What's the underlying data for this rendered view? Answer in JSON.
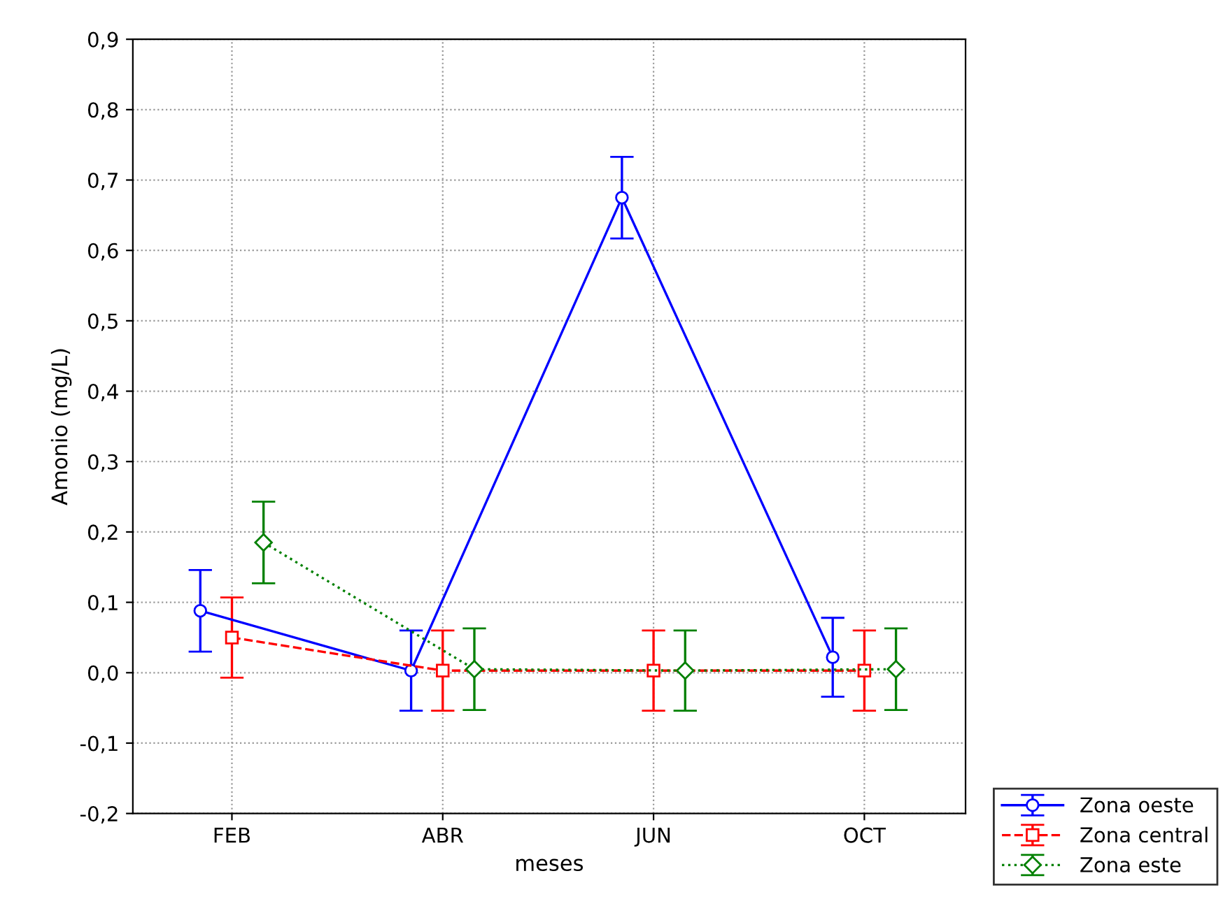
{
  "chart_data": {
    "type": "line",
    "xlabel": "meses",
    "ylabel": "Amonio (mg/L)",
    "categories": [
      "FEB",
      "ABR",
      "JUN",
      "OCT"
    ],
    "series": [
      {
        "name": "Zona oeste",
        "color": "#0000ff",
        "values": [
          0.088,
          0.003,
          0.675,
          0.022
        ],
        "errors": [
          0.058,
          0.057,
          0.058,
          0.056
        ],
        "marker": "circle",
        "line_style": "solid"
      },
      {
        "name": "Zona central",
        "color": "#ff0000",
        "values": [
          0.05,
          0.003,
          0.003,
          0.003
        ],
        "errors": [
          0.057,
          0.057,
          0.057,
          0.057
        ],
        "marker": "square",
        "line_style": "dashed"
      },
      {
        "name": "Zona este",
        "color": "#008000",
        "values": [
          0.185,
          0.005,
          0.003,
          0.005
        ],
        "errors": [
          0.058,
          0.058,
          0.057,
          0.058
        ],
        "marker": "diamond",
        "line_style": "dotted"
      }
    ],
    "ylim": [
      -0.2,
      0.9
    ],
    "yticks": [
      {
        "value": -0.2,
        "label": "-0,2"
      },
      {
        "value": -0.1,
        "label": "-0,1"
      },
      {
        "value": 0,
        "label": "0,0"
      },
      {
        "value": 0.1,
        "label": "0,1"
      },
      {
        "value": 0.2,
        "label": "0,2"
      },
      {
        "value": 0.3,
        "label": "0,3"
      },
      {
        "value": 0.4,
        "label": "0,4"
      },
      {
        "value": 0.5,
        "label": "0,5"
      },
      {
        "value": 0.6,
        "label": "0,6"
      },
      {
        "value": 0.7,
        "label": "0,7"
      },
      {
        "value": 0.8,
        "label": "0,8"
      },
      {
        "value": 0.9,
        "label": "0,9"
      }
    ],
    "grid": true,
    "legend": "bottom right"
  }
}
